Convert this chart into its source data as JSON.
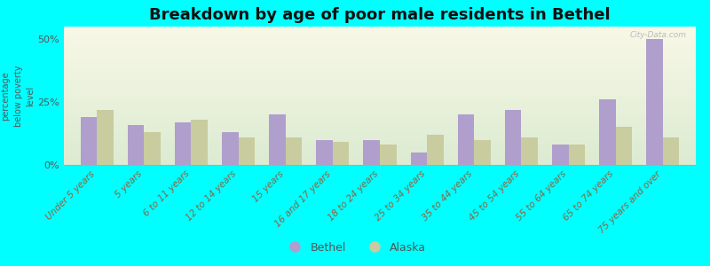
{
  "title": "Breakdown by age of poor male residents in Bethel",
  "ylabel": "percentage\nbelow poverty\nlevel",
  "categories": [
    "Under 5 years",
    "5 years",
    "6 to 11 years",
    "12 to 14 years",
    "15 years",
    "16 and 17 years",
    "18 to 24 years",
    "25 to 34 years",
    "35 to 44 years",
    "45 to 54 years",
    "55 to 64 years",
    "65 to 74 years",
    "75 years and over"
  ],
  "bethel_values": [
    19,
    16,
    17,
    13,
    20,
    10,
    10,
    5,
    20,
    22,
    8,
    26,
    50
  ],
  "alaska_values": [
    22,
    13,
    18,
    11,
    11,
    9,
    8,
    12,
    10,
    11,
    8,
    15,
    11
  ],
  "bethel_color": "#b09fcc",
  "alaska_color": "#c8cc9f",
  "outer_bg_color": "#00ffff",
  "ylim": [
    0,
    55
  ],
  "yticks": [
    0,
    25,
    50
  ],
  "ytick_labels": [
    "0%",
    "25%",
    "50%"
  ],
  "title_fontsize": 13,
  "label_fontsize": 7.5,
  "tick_fontsize": 8,
  "legend_bethel": "Bethel",
  "legend_alaska": "Alaska",
  "watermark": "City-Data.com"
}
